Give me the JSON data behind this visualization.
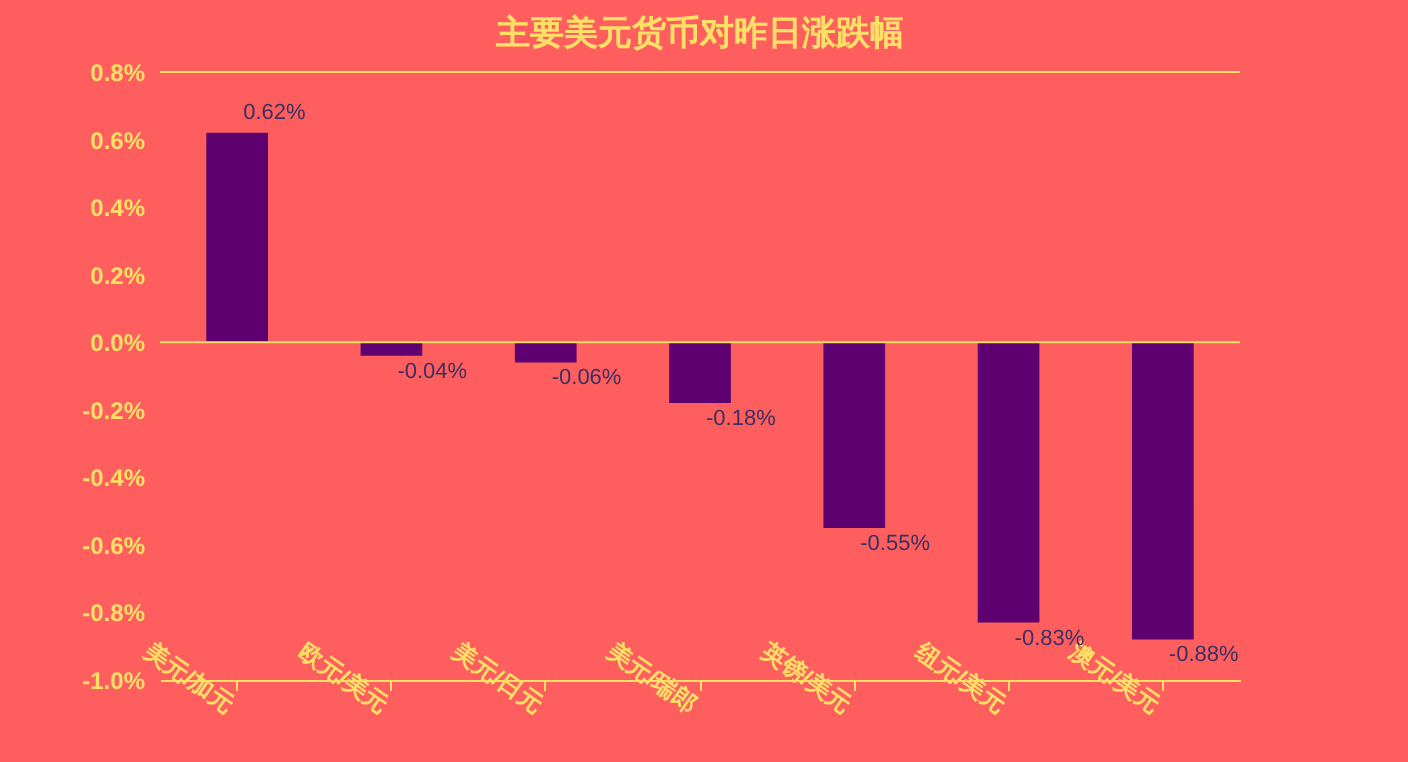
{
  "chart_data": {
    "type": "bar",
    "title": "主要美元货币对昨日涨跌幅",
    "categories": [
      "美元/加元",
      "欧元/美元",
      "美元/日元",
      "美元/瑞郎",
      "英镑/美元",
      "纽元/美元",
      "澳元/美元"
    ],
    "values": [
      0.62,
      -0.04,
      -0.06,
      -0.18,
      -0.55,
      -0.83,
      -0.88
    ],
    "value_labels": [
      "0.62%",
      "-0.04%",
      "-0.06%",
      "-0.18%",
      "-0.55%",
      "-0.83%",
      "-0.88%"
    ],
    "color": "#5f0070",
    "ylim": [
      -1.0,
      0.8
    ],
    "yticks": [
      {
        "value": -1.0,
        "label": "-1.0%"
      },
      {
        "value": -0.8,
        "label": "-0.8%"
      },
      {
        "value": -0.6,
        "label": "-0.6%"
      },
      {
        "value": -0.4,
        "label": "-0.4%"
      },
      {
        "value": -0.2,
        "label": "-0.2%"
      },
      {
        "value": 0,
        "label": "0.0%"
      },
      {
        "value": 0.2,
        "label": "0.2%"
      },
      {
        "value": 0.4,
        "label": "0.4%"
      },
      {
        "value": 0.6,
        "label": "0.6%"
      },
      {
        "value": 0.8,
        "label": "0.8%"
      }
    ],
    "ref_lines": [
      {
        "axis": "y",
        "value": 0,
        "color": "#ffe066"
      },
      {
        "axis": "y",
        "value": 0.8,
        "color": "#ffe066"
      }
    ],
    "grid": false
  }
}
